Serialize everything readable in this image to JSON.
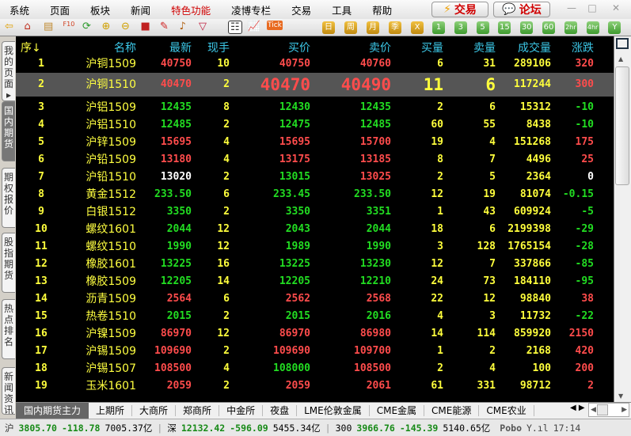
{
  "menu": [
    "系统",
    "页面",
    "板块",
    "新闻",
    "特色功能",
    "凌博专栏",
    "交易",
    "工具",
    "帮助"
  ],
  "menu_highlight_index": 4,
  "top_buttons": {
    "trade": "交易",
    "forum": "论坛"
  },
  "toolbar": {
    "icons": [
      "back-arrow-icon",
      "home-icon",
      "notebook-icon",
      "f10-icon",
      "refresh-icon",
      "zoom-in-icon",
      "zoom-out-icon",
      "window-icon",
      "pen-icon",
      "bell-icon",
      "filter-icon",
      "quote-list-icon",
      "trend-chart-icon",
      "tick-icon"
    ],
    "tick_label": "Tick",
    "period_buttons": [
      "日",
      "周",
      "月",
      "季",
      "X"
    ],
    "minute_buttons": [
      "1",
      "3",
      "5",
      "15",
      "30",
      "60",
      "2hr",
      "4hr",
      "Y"
    ]
  },
  "side_tabs": [
    "我的页面▸",
    "国内期货",
    "期权报价",
    "股指期货",
    "热点排名",
    "新闻资讯"
  ],
  "side_active": 1,
  "table": {
    "headers": [
      "序↓",
      "名称",
      "最新",
      "现手",
      "买价",
      "卖价",
      "买量",
      "卖量",
      "成交量",
      "涨跌"
    ],
    "selected_index": 1,
    "rows": [
      {
        "no": "1",
        "name": "沪铜1509",
        "last": "40750",
        "cur": "10",
        "bid": "40750",
        "ask": "40760",
        "bv": "6",
        "av": "31",
        "vol": "289106",
        "chg": "320",
        "colors": "rrrr"
      },
      {
        "no": "2",
        "name": "沪铜1510",
        "last": "40470",
        "cur": "2",
        "bid": "40470",
        "ask": "40490",
        "bv": "11",
        "av": "6",
        "vol": "117244",
        "chg": "300",
        "colors": "rrrr"
      },
      {
        "no": "3",
        "name": "沪铝1509",
        "last": "12435",
        "cur": "8",
        "bid": "12430",
        "ask": "12435",
        "bv": "2",
        "av": "6",
        "vol": "15312",
        "chg": "-10",
        "colors": "gggg"
      },
      {
        "no": "4",
        "name": "沪铝1510",
        "last": "12485",
        "cur": "2",
        "bid": "12475",
        "ask": "12485",
        "bv": "60",
        "av": "55",
        "vol": "8438",
        "chg": "-10",
        "colors": "gggg"
      },
      {
        "no": "5",
        "name": "沪锌1509",
        "last": "15695",
        "cur": "4",
        "bid": "15695",
        "ask": "15700",
        "bv": "19",
        "av": "4",
        "vol": "151268",
        "chg": "175",
        "colors": "rrrr"
      },
      {
        "no": "6",
        "name": "沪铅1509",
        "last": "13180",
        "cur": "4",
        "bid": "13175",
        "ask": "13185",
        "bv": "8",
        "av": "7",
        "vol": "4496",
        "chg": "25",
        "colors": "rrrr"
      },
      {
        "no": "7",
        "name": "沪铅1510",
        "last": "13020",
        "cur": "2",
        "bid": "13015",
        "ask": "13025",
        "bv": "2",
        "av": "5",
        "vol": "2364",
        "chg": "0",
        "colors": "wgrw"
      },
      {
        "no": "8",
        "name": "黄金1512",
        "last": "233.50",
        "cur": "6",
        "bid": "233.45",
        "ask": "233.50",
        "bv": "12",
        "av": "19",
        "vol": "81074",
        "chg": "-0.15",
        "colors": "gggg"
      },
      {
        "no": "9",
        "name": "白银1512",
        "last": "3350",
        "cur": "2",
        "bid": "3350",
        "ask": "3351",
        "bv": "1",
        "av": "43",
        "vol": "609924",
        "chg": "-5",
        "colors": "gggg"
      },
      {
        "no": "10",
        "name": "螺纹1601",
        "last": "2044",
        "cur": "12",
        "bid": "2043",
        "ask": "2044",
        "bv": "18",
        "av": "6",
        "vol": "2199398",
        "chg": "-29",
        "colors": "gggg"
      },
      {
        "no": "11",
        "name": "螺纹1510",
        "last": "1990",
        "cur": "12",
        "bid": "1989",
        "ask": "1990",
        "bv": "3",
        "av": "128",
        "vol": "1765154",
        "chg": "-28",
        "colors": "gggg"
      },
      {
        "no": "12",
        "name": "橡胶1601",
        "last": "13225",
        "cur": "16",
        "bid": "13225",
        "ask": "13230",
        "bv": "12",
        "av": "7",
        "vol": "337866",
        "chg": "-85",
        "colors": "gggg"
      },
      {
        "no": "13",
        "name": "橡胶1509",
        "last": "12205",
        "cur": "14",
        "bid": "12205",
        "ask": "12210",
        "bv": "24",
        "av": "73",
        "vol": "184110",
        "chg": "-95",
        "colors": "gggg"
      },
      {
        "no": "14",
        "name": "沥青1509",
        "last": "2564",
        "cur": "6",
        "bid": "2562",
        "ask": "2568",
        "bv": "22",
        "av": "12",
        "vol": "98840",
        "chg": "38",
        "colors": "rrrr"
      },
      {
        "no": "15",
        "name": "热卷1510",
        "last": "2015",
        "cur": "2",
        "bid": "2015",
        "ask": "2016",
        "bv": "4",
        "av": "3",
        "vol": "11732",
        "chg": "-22",
        "colors": "gggg"
      },
      {
        "no": "16",
        "name": "沪镍1509",
        "last": "86970",
        "cur": "12",
        "bid": "86970",
        "ask": "86980",
        "bv": "14",
        "av": "114",
        "vol": "859920",
        "chg": "2150",
        "colors": "rrrr"
      },
      {
        "no": "17",
        "name": "沪锡1509",
        "last": "109690",
        "cur": "2",
        "bid": "109690",
        "ask": "109700",
        "bv": "1",
        "av": "2",
        "vol": "2168",
        "chg": "420",
        "colors": "rrrr"
      },
      {
        "no": "18",
        "name": "沪锡1507",
        "last": "108500",
        "cur": "4",
        "bid": "108000",
        "ask": "108500",
        "bv": "2",
        "av": "4",
        "vol": "100",
        "chg": "200",
        "colors": "rgrr"
      },
      {
        "no": "19",
        "name": "玉米1601",
        "last": "2059",
        "cur": "2",
        "bid": "2059",
        "ask": "2061",
        "bv": "61",
        "av": "331",
        "vol": "98712",
        "chg": "2",
        "colors": "rrrr"
      }
    ]
  },
  "bottom_tabs": [
    "国内期货主力",
    "上期所",
    "大商所",
    "郑商所",
    "中金所",
    "夜盘",
    "LME伦敦金属",
    "CME金属",
    "CME能源",
    "CME农业"
  ],
  "bottom_active": 0,
  "status": {
    "sh_label": "沪",
    "sh_index": "3805.70",
    "sh_change": "-118.78",
    "sh_amount": "7005.37亿",
    "sz_label": "深",
    "sz_index": "12132.42",
    "sz_change": "-596.09",
    "sz_amount": "5455.34亿",
    "hs300_label": "300",
    "hs300_index": "3966.76",
    "hs300_change": "-145.39",
    "hs300_amount": "5140.65亿",
    "brand": "Pobo",
    "time": "17:14"
  },
  "colors": {
    "up": "#ff4c4c",
    "down": "#22dd22",
    "flat": "#ffffff",
    "header": "#3cc8e8",
    "name": "#ffff40"
  }
}
